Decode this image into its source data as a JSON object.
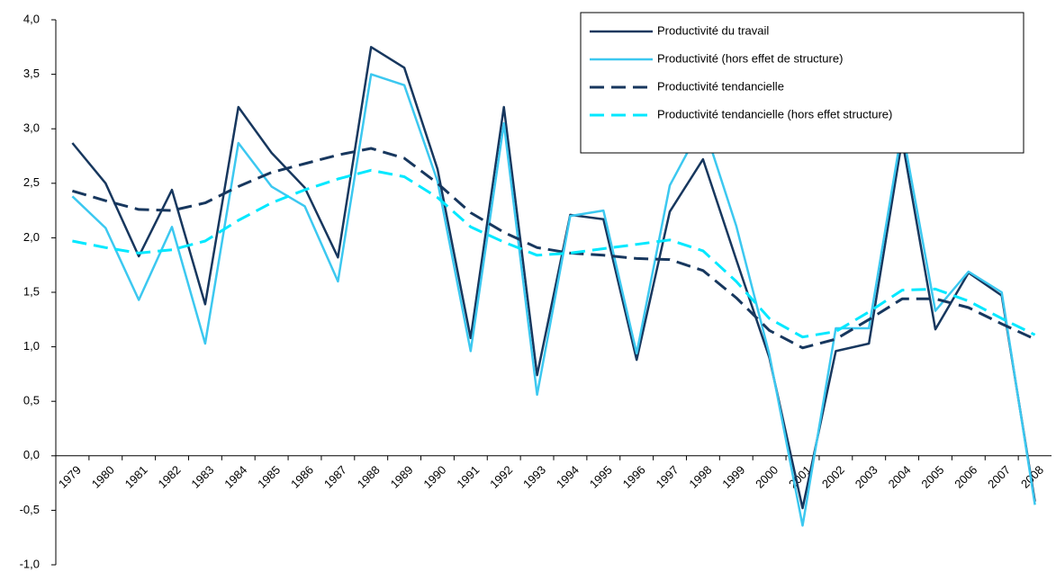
{
  "chart_data": {
    "type": "line",
    "categories": [
      "1979",
      "1980",
      "1981",
      "1982",
      "1983",
      "1984",
      "1985",
      "1986",
      "1987",
      "1988",
      "1989",
      "1990",
      "1991",
      "1992",
      "1993",
      "1994",
      "1995",
      "1996",
      "1997",
      "1998",
      "1999",
      "2000",
      "2001",
      "2002",
      "2003",
      "2004",
      "2005",
      "2006",
      "2007",
      "2008"
    ],
    "series": [
      {
        "name": "Productivité du travail",
        "color": "#17375e",
        "dashed": false,
        "values": [
          2.87,
          2.5,
          1.83,
          2.44,
          1.39,
          3.2,
          2.78,
          2.46,
          1.82,
          3.75,
          3.56,
          2.63,
          1.08,
          3.2,
          0.74,
          2.21,
          2.17,
          0.88,
          2.24,
          2.72,
          1.8,
          0.9,
          -0.48,
          0.96,
          1.03,
          2.9,
          1.16,
          1.68,
          1.47,
          -0.42
        ]
      },
      {
        "name": "Productivité (hors effet de structure)",
        "color": "#3cc8f0",
        "dashed": false,
        "values": [
          2.38,
          2.09,
          1.43,
          2.1,
          1.03,
          2.87,
          2.47,
          2.29,
          1.6,
          3.5,
          3.4,
          2.52,
          0.96,
          3.05,
          0.56,
          2.2,
          2.25,
          0.94,
          2.48,
          3.05,
          2.11,
          0.93,
          -0.64,
          1.17,
          1.17,
          3.0,
          1.33,
          1.69,
          1.5,
          -0.45
        ]
      },
      {
        "name": "Productivité tendancielle",
        "color": "#17375e",
        "dashed": true,
        "values": [
          2.43,
          2.34,
          2.26,
          2.25,
          2.32,
          2.47,
          2.6,
          2.68,
          2.76,
          2.82,
          2.73,
          2.5,
          2.23,
          2.05,
          1.91,
          1.86,
          1.84,
          1.81,
          1.8,
          1.7,
          1.45,
          1.15,
          0.99,
          1.07,
          1.25,
          1.44,
          1.44,
          1.36,
          1.21,
          1.07
        ]
      },
      {
        "name": "Productivité tendancielle (hors effet structure)",
        "color": "#00e8ff",
        "dashed": true,
        "values": [
          1.97,
          1.91,
          1.86,
          1.89,
          1.97,
          2.16,
          2.32,
          2.44,
          2.54,
          2.62,
          2.56,
          2.37,
          2.1,
          1.96,
          1.84,
          1.86,
          1.9,
          1.94,
          1.98,
          1.88,
          1.6,
          1.26,
          1.09,
          1.14,
          1.32,
          1.52,
          1.53,
          1.42,
          1.26,
          1.11
        ]
      }
    ],
    "ylim": [
      -1,
      4
    ],
    "yticks": [
      {
        "value": -1,
        "label": "-1,0"
      },
      {
        "value": -0.5,
        "label": "-0,5"
      },
      {
        "value": 0,
        "label": "0,0"
      },
      {
        "value": 0.5,
        "label": "0,5"
      },
      {
        "value": 1,
        "label": "1,0"
      },
      {
        "value": 1.5,
        "label": "1,5"
      },
      {
        "value": 2,
        "label": "2,0"
      },
      {
        "value": 2.5,
        "label": "2,5"
      },
      {
        "value": 3,
        "label": "3,0"
      },
      {
        "value": 3.5,
        "label": "3,5"
      },
      {
        "value": 4,
        "label": "4,0"
      }
    ],
    "grid": false
  }
}
